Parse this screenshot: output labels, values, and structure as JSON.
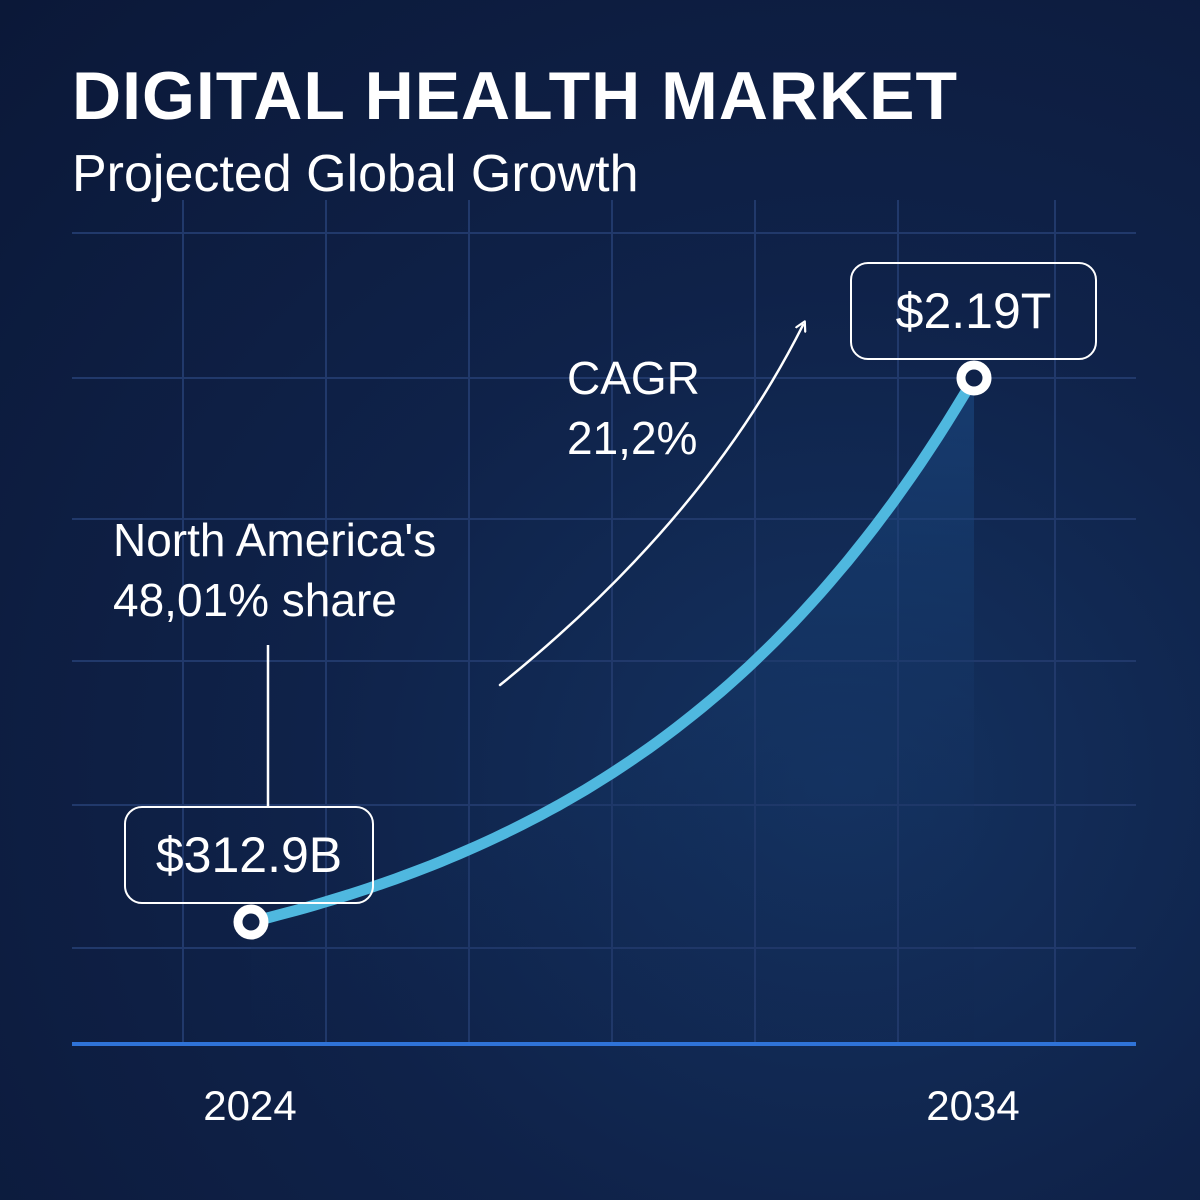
{
  "colors": {
    "background": "#0f2249",
    "grid": "#21396b",
    "axis": "#2f73d8",
    "line": "#4fb8df",
    "text": "#ffffff"
  },
  "chart_data": {
    "type": "line",
    "title": "DIGITAL HEALTH MARKET",
    "subtitle": "Projected Global Growth",
    "x": [
      2024,
      2034
    ],
    "x_tick_labels": [
      "2024",
      "2034"
    ],
    "series": [
      {
        "values": [
          312.9,
          2190
        ],
        "unit": "billion USD",
        "point_labels": [
          "$312.9B",
          "$2.19T"
        ],
        "shape": "exponential curve"
      }
    ],
    "annotations": [
      {
        "text_lines": [
          "CAGR",
          "21,2%"
        ],
        "arrow": "curved upward"
      },
      {
        "text_lines": [
          "North America's",
          "48,01% share"
        ],
        "points_to": "2024"
      }
    ],
    "grid": true,
    "legend": "none"
  }
}
